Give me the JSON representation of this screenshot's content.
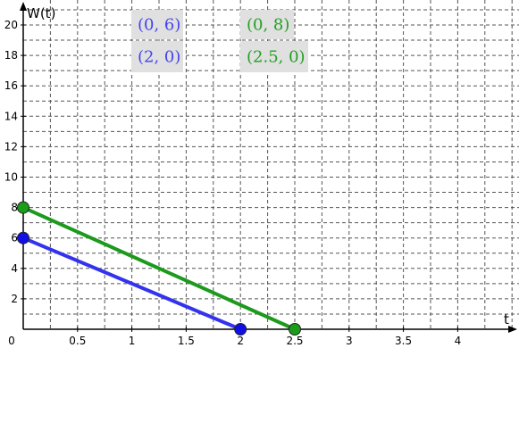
{
  "chart_data": {
    "type": "line",
    "xlabel": "t",
    "ylabel": "W(t)",
    "xlim": [
      0,
      4.6
    ],
    "ylim": [
      0,
      21
    ],
    "grid": true,
    "x_ticks": [
      0.5,
      1,
      1.5,
      2,
      2.5,
      3,
      3.5,
      4
    ],
    "x_tick_labels": [
      "0.5",
      "1",
      "1.5",
      "2",
      "2.5",
      "3",
      "3.5",
      "4"
    ],
    "y_ticks": [
      2,
      4,
      6,
      8,
      10,
      12,
      14,
      16,
      18,
      20
    ],
    "y_tick_labels": [
      "2",
      "4",
      "6",
      "8",
      "10",
      "12",
      "14",
      "16",
      "18",
      "20"
    ],
    "origin_label": "0",
    "series": [
      {
        "points": [
          [
            0,
            6
          ],
          [
            2,
            0
          ]
        ],
        "color": "#3333ee",
        "marker_color": "#1010e6"
      },
      {
        "points": [
          [
            0,
            8
          ],
          [
            2.5,
            0
          ]
        ],
        "color": "#1c9a1c",
        "marker_color": "#1a9e1a"
      }
    ],
    "annotations": [
      {
        "text": "(0, 6)",
        "color": "#4444ee",
        "box": "#e0e0e0"
      },
      {
        "text": "(2, 0)",
        "color": "#4444ee",
        "box": "#e0e0e0"
      },
      {
        "text": "(0, 8)",
        "color": "#22a022",
        "box": "#e0e0e0"
      },
      {
        "text": "(2.5, 0)",
        "color": "#22a022",
        "box": "#e0e0e0"
      }
    ]
  }
}
